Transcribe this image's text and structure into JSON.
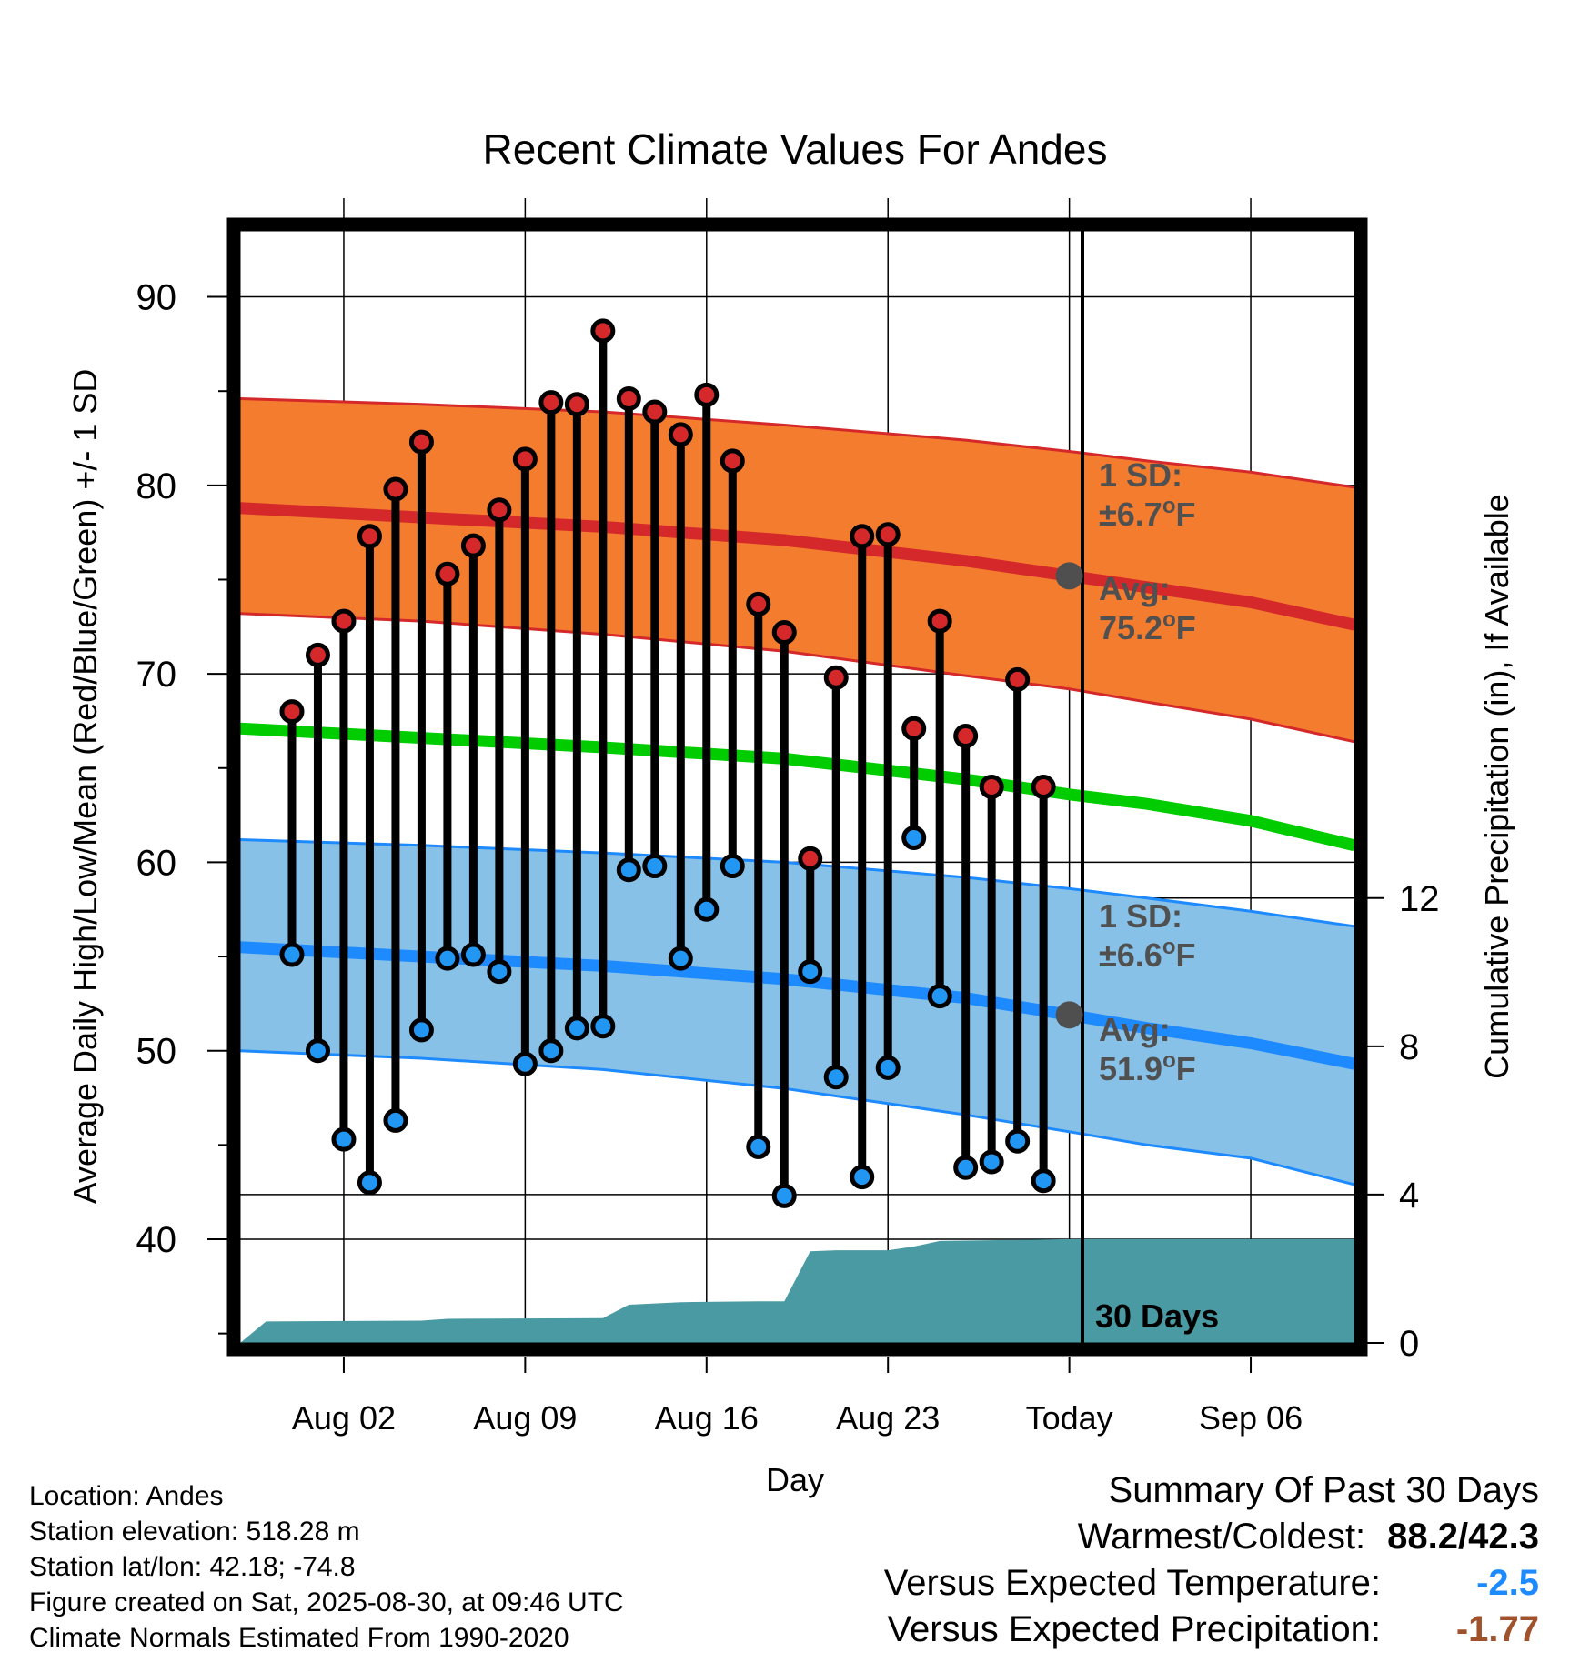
{
  "chart_data": {
    "type": "line",
    "title": "Recent Climate Values For Andes",
    "xlabel": "Day",
    "ylabel": "Average Daily High/Low/Mean (Red/Blue/Green) +/- 1 SD",
    "ylabel_right": "Cumulative Precipitation (in), If Available",
    "ylim": [
      34.5,
      93.5
    ],
    "y_ticks": [
      40,
      50,
      60,
      70,
      80,
      90
    ],
    "y2lim": [
      0,
      30
    ],
    "y2_ticks": [
      0,
      4,
      8,
      12
    ],
    "xlim": [
      "2025-07-29",
      "2025-09-10"
    ],
    "x_ticks": [
      {
        "date": "2025-08-02",
        "label": "Aug 02"
      },
      {
        "date": "2025-08-09",
        "label": "Aug 09"
      },
      {
        "date": "2025-08-16",
        "label": "Aug 16"
      },
      {
        "date": "2025-08-23",
        "label": "Aug 23"
      },
      {
        "date": "2025-08-30",
        "label": "Today"
      },
      {
        "date": "2025-09-06",
        "label": "Sep 06"
      }
    ],
    "grid": true,
    "today": "2025-08-30",
    "today_label": "30 Days",
    "normals": {
      "dates": [
        "2025-07-29",
        "2025-08-05",
        "2025-08-12",
        "2025-08-19",
        "2025-08-26",
        "2025-08-30",
        "2025-09-02",
        "2025-09-06",
        "2025-09-10"
      ],
      "high_avg": [
        78.8,
        78.3,
        77.8,
        77.1,
        76.0,
        75.2,
        74.6,
        73.8,
        72.6
      ],
      "high_sd_upper": [
        84.6,
        84.3,
        83.9,
        83.2,
        82.4,
        81.8,
        81.3,
        80.7,
        79.9
      ],
      "high_sd_lower": [
        73.2,
        72.8,
        72.1,
        71.2,
        69.9,
        69.2,
        68.5,
        67.6,
        66.4
      ],
      "mean": [
        67.1,
        66.6,
        66.1,
        65.5,
        64.4,
        63.6,
        63.1,
        62.2,
        60.9
      ],
      "low_avg": [
        55.5,
        55.0,
        54.5,
        53.8,
        52.8,
        51.9,
        51.2,
        50.4,
        49.3
      ],
      "low_sd_upper": [
        61.2,
        60.9,
        60.5,
        60.0,
        59.2,
        58.6,
        58.1,
        57.4,
        56.6
      ],
      "low_sd_lower": [
        50.0,
        49.6,
        49.0,
        48.0,
        46.6,
        45.7,
        45.0,
        44.3,
        42.9
      ]
    },
    "observations": {
      "dates": [
        "2025-07-31",
        "2025-08-01",
        "2025-08-02",
        "2025-08-03",
        "2025-08-04",
        "2025-08-05",
        "2025-08-06",
        "2025-08-07",
        "2025-08-08",
        "2025-08-09",
        "2025-08-10",
        "2025-08-11",
        "2025-08-12",
        "2025-08-13",
        "2025-08-14",
        "2025-08-15",
        "2025-08-16",
        "2025-08-17",
        "2025-08-18",
        "2025-08-19",
        "2025-08-20",
        "2025-08-21",
        "2025-08-22",
        "2025-08-23",
        "2025-08-24",
        "2025-08-25",
        "2025-08-26",
        "2025-08-27",
        "2025-08-28",
        "2025-08-29"
      ],
      "highs": [
        68.0,
        71.0,
        72.8,
        77.3,
        79.8,
        82.3,
        75.3,
        76.8,
        78.7,
        81.4,
        84.4,
        84.3,
        88.2,
        84.6,
        83.9,
        82.7,
        84.8,
        81.3,
        73.7,
        72.2,
        60.2,
        69.8,
        77.3,
        77.4,
        67.1,
        72.8,
        66.7,
        64.0,
        69.7,
        64.0
      ],
      "lows": [
        55.1,
        50.0,
        45.3,
        43.0,
        46.3,
        51.1,
        54.9,
        55.1,
        54.2,
        49.3,
        50.0,
        51.2,
        51.3,
        59.6,
        59.8,
        54.9,
        57.5,
        59.8,
        44.9,
        42.3,
        54.2,
        48.6,
        43.3,
        49.1,
        61.3,
        52.9,
        43.8,
        44.1,
        45.2,
        43.1
      ]
    },
    "precip": {
      "dates": [
        "2025-07-29",
        "2025-07-30",
        "2025-08-05",
        "2025-08-06",
        "2025-08-12",
        "2025-08-13",
        "2025-08-15",
        "2025-08-18",
        "2025-08-19",
        "2025-08-20",
        "2025-08-21",
        "2025-08-23",
        "2025-08-24",
        "2025-08-25",
        "2025-08-30",
        "2025-09-10"
      ],
      "cumulative": [
        0.0,
        0.58,
        0.6,
        0.65,
        0.67,
        1.03,
        1.1,
        1.12,
        1.12,
        2.47,
        2.5,
        2.5,
        2.6,
        2.75,
        2.8,
        2.8
      ]
    },
    "annotations": {
      "high_sd_label": "1 SD:",
      "high_sd_value": "±6.7",
      "high_avg_label": "Avg:",
      "high_avg_value": "75.2",
      "low_sd_label": "1 SD:",
      "low_sd_value": "±6.6",
      "low_avg_label": "Avg:",
      "low_avg_value": "51.9",
      "unit": "F"
    },
    "colors": {
      "high_band": "#f47c2e",
      "high_line": "#d4282a",
      "mean_line": "#00cc00",
      "low_band": "#87c1e8",
      "low_line": "#1e8aff",
      "precip_fill": "#4a9aa3",
      "high_marker": "#d4282a",
      "low_marker": "#2196f3",
      "annotation": "#505050"
    }
  },
  "footer": {
    "location": "Location: Andes",
    "elevation": "Station elevation: 518.28 m",
    "latlon": "Station lat/lon: 42.18; -74.8",
    "created": "Figure created on Sat, 2025-08-30, at 09:46 UTC",
    "normals": "Climate Normals Estimated From 1990-2020"
  },
  "summary": {
    "title": "Summary Of Past 30 Days",
    "warmest_coldest_label": "Warmest/Coldest:",
    "warmest_coldest_value": "88.2/42.3",
    "temp_label": "Versus Expected Temperature:",
    "temp_value": "-2.5",
    "temp_color": "#1e8aff",
    "precip_label": "Versus Expected Precipitation:",
    "precip_value": "-1.77",
    "precip_color": "#a0522d"
  }
}
